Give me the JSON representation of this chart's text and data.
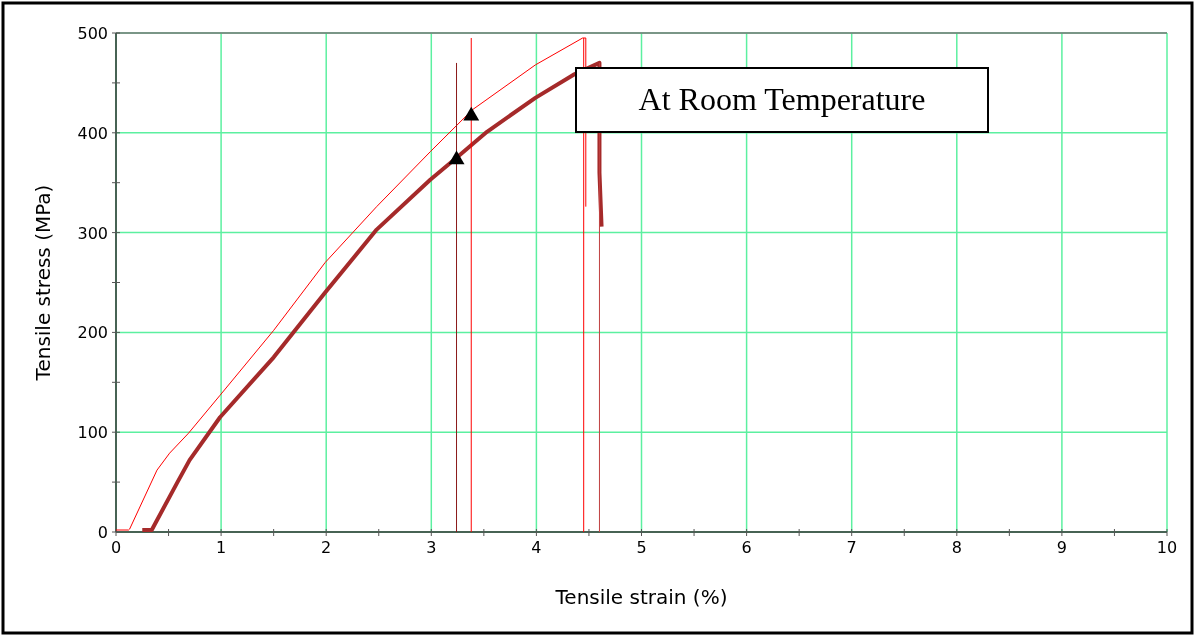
{
  "chart_data": {
    "type": "line",
    "xlabel": "Tensile strain (%)",
    "ylabel": "Tensile stress (MPa)",
    "annotations": [
      "At Room Temperature"
    ],
    "xlim": [
      0,
      10
    ],
    "ylim": [
      0,
      500
    ],
    "xticks": [
      0,
      {
        "value": 0.5,
        "label": null
      },
      1,
      {
        "value": 1.5,
        "label": null
      },
      2,
      {
        "value": 2.5,
        "label": null
      },
      3,
      {
        "value": 3.5,
        "label": null
      },
      4,
      {
        "value": 4.5,
        "label": null
      },
      5,
      {
        "value": 5.5,
        "label": null
      },
      6,
      {
        "value": 6.5,
        "label": null
      },
      7,
      {
        "value": 7.5,
        "label": null
      },
      8,
      {
        "value": 8.5,
        "label": null
      },
      9,
      {
        "value": 9.5,
        "label": null
      },
      10
    ],
    "yticks": [
      0,
      {
        "value": 50,
        "label": null
      },
      100,
      {
        "value": 150,
        "label": null
      },
      200,
      {
        "value": 250,
        "label": null
      },
      300,
      {
        "value": 350,
        "label": null
      },
      400,
      {
        "value": 450,
        "label": null
      },
      500
    ],
    "grid": true,
    "series": [
      {
        "color": "#ff0000",
        "x": [
          0,
          0.12,
          0.13,
          0.39,
          0.51,
          0.69,
          0.99,
          1.5,
          1.99,
          2.48,
          2.99,
          3.39,
          3.99,
          4.44,
          4.47,
          4.47
        ],
        "values": [
          2,
          2,
          3,
          62,
          79,
          99,
          137,
          202,
          270,
          326,
          381,
          423,
          468,
          495,
          495,
          326
        ]
      },
      {
        "color": "#a52a2a",
        "x": [
          0.25,
          0.34,
          0.58,
          0.7,
          0.99,
          1.5,
          1.99,
          2.48,
          2.99,
          3.24,
          3.53,
          3.99,
          4.35,
          4.6,
          4.6,
          4.62
        ],
        "values": [
          2,
          2,
          49,
          72,
          115,
          175,
          240,
          303,
          353,
          375,
          401,
          435,
          458,
          470,
          360,
          306
        ]
      },
      {
        "color": "#8b1a1a",
        "x": [
          3.24,
          3.24
        ],
        "values": [
          0,
          470
        ]
      },
      {
        "color": "#ff0000",
        "x": [
          3.38,
          3.38
        ],
        "values": [
          0,
          495
        ]
      },
      {
        "color": "#ff0000",
        "x": [
          4.45,
          4.45
        ],
        "values": [
          0,
          495
        ]
      },
      {
        "color": "#c04040",
        "x": [
          4.6,
          4.6
        ],
        "values": [
          0,
          470
        ]
      },
      {
        "type": "scatter",
        "marker": "triangle",
        "color": "#000000",
        "x": [
          3.24,
          3.38
        ],
        "values": [
          373,
          417
        ]
      }
    ]
  }
}
